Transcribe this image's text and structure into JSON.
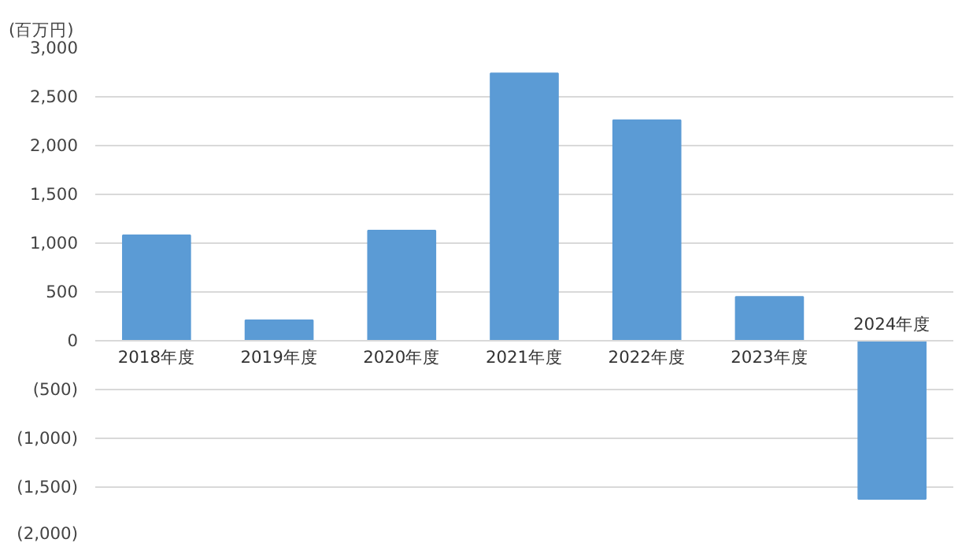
{
  "chart_data": {
    "type": "bar",
    "ylabel": "(百万円)",
    "categories": [
      "2018年度",
      "2019年度",
      "2020年度",
      "2021年度",
      "2022年度",
      "2023年度",
      "2024年度"
    ],
    "values": [
      1080,
      210,
      1130,
      2740,
      2260,
      450,
      -1620
    ],
    "color": "#5b9bd5",
    "ylim": [
      -2000,
      3000
    ],
    "yticks": [
      {
        "value": -2000,
        "label": "(2,000)"
      },
      {
        "value": -1500,
        "label": "(1,500)"
      },
      {
        "value": -1000,
        "label": "(1,000)"
      },
      {
        "value": -500,
        "label": "(500)"
      },
      0,
      {
        "value": 500,
        "label": "500"
      },
      {
        "value": 1000,
        "label": "1,000"
      },
      {
        "value": 1500,
        "label": "1,500"
      },
      {
        "value": 2000,
        "label": "2,000"
      },
      {
        "value": 2500,
        "label": "2,500"
      },
      {
        "value": 3000,
        "label": "3,000"
      }
    ],
    "grid": "y"
  }
}
